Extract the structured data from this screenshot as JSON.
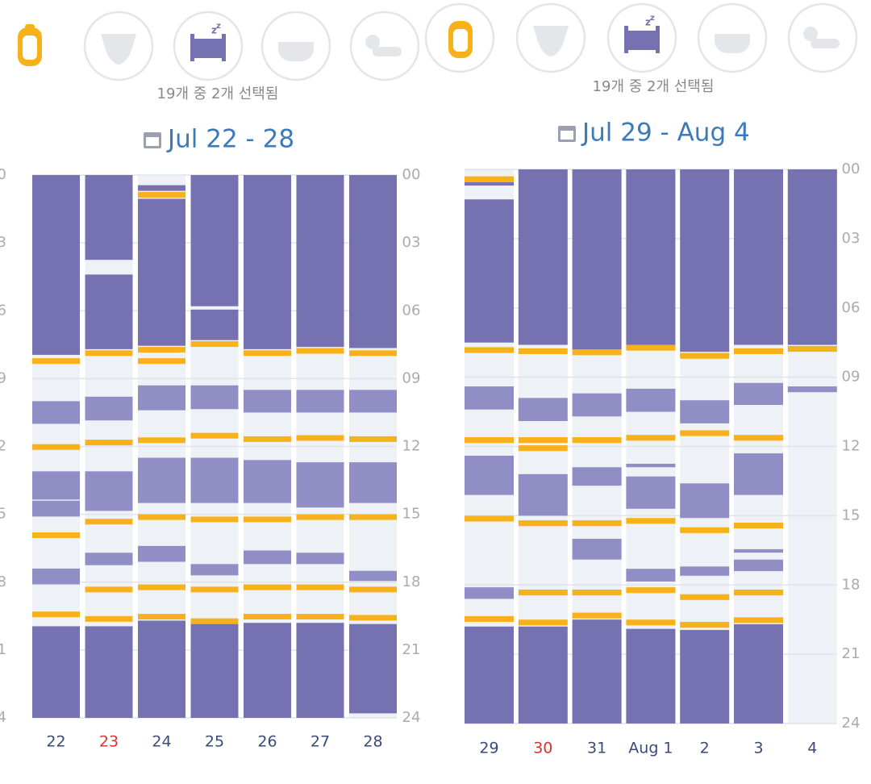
{
  "colors": {
    "background": "#eef1f6",
    "grid": "#dfe3ea",
    "sleep": "#7672b1",
    "nap": "#918ec6",
    "feed": "#f7b21b",
    "tick": "#aaaab0",
    "day": "#3a4a7a",
    "title": "#3d7ab8",
    "selection": "#888"
  },
  "panels": [
    {
      "selection": "19개 중 2개 선택됨",
      "title": "Jul 22 - 28",
      "ylim": [
        0,
        24
      ],
      "yticks": [
        {
          "value": 0,
          "label": "00"
        },
        {
          "value": 3,
          "label": "03"
        },
        {
          "value": 6,
          "label": "06"
        },
        {
          "value": 9,
          "label": "09"
        },
        12,
        15,
        18,
        21,
        24
      ],
      "days": [
        {
          "label": "22",
          "sleep": [
            [
              0,
              7.95
            ],
            [
              19.95,
              24
            ]
          ],
          "nap": [
            [
              10.0,
              11.0
            ],
            [
              13.1,
              14.35
            ],
            [
              14.4,
              15.1
            ],
            [
              17.4,
              18.1
            ]
          ],
          "feed": [
            [
              8.1,
              8.35
            ],
            [
              11.9,
              12.15
            ],
            [
              15.8,
              16.05
            ],
            [
              19.3,
              19.55
            ]
          ]
        },
        {
          "label": "23",
          "color": "#d9332c",
          "sleep": [
            [
              0,
              3.75
            ],
            [
              4.4,
              7.7
            ],
            [
              19.95,
              24
            ]
          ],
          "nap": [
            [
              9.8,
              10.85
            ],
            [
              13.1,
              14.85
            ],
            [
              16.7,
              17.25
            ]
          ],
          "feed": [
            [
              7.75,
              8.0
            ],
            [
              11.7,
              11.95
            ],
            [
              15.2,
              15.45
            ],
            [
              18.2,
              18.45
            ],
            [
              19.5,
              19.75
            ]
          ]
        },
        {
          "label": "24",
          "sleep": [
            [
              0.45,
              0.7
            ],
            [
              1.05,
              7.55
            ],
            [
              19.7,
              24
            ]
          ],
          "nap": [
            [
              9.3,
              10.4
            ],
            [
              12.5,
              14.5
            ],
            [
              16.4,
              17.1
            ]
          ],
          "feed": [
            [
              0.75,
              1.0
            ],
            [
              7.6,
              7.85
            ],
            [
              8.1,
              8.35
            ],
            [
              11.6,
              11.85
            ],
            [
              15.0,
              15.25
            ],
            [
              18.1,
              18.35
            ],
            [
              19.4,
              19.65
            ]
          ]
        },
        {
          "label": "25",
          "sleep": [
            [
              0,
              5.8
            ],
            [
              5.95,
              7.3
            ],
            [
              19.85,
              24
            ]
          ],
          "nap": [
            [
              9.3,
              10.35
            ],
            [
              12.5,
              14.5
            ],
            [
              17.2,
              17.7
            ]
          ],
          "feed": [
            [
              7.35,
              7.6
            ],
            [
              11.4,
              11.65
            ],
            [
              15.1,
              15.35
            ],
            [
              18.2,
              18.45
            ],
            [
              19.6,
              19.85
            ]
          ]
        },
        {
          "label": "26",
          "sleep": [
            [
              0,
              7.7
            ],
            [
              19.8,
              24
            ]
          ],
          "nap": [
            [
              9.5,
              10.5
            ],
            [
              12.6,
              14.5
            ],
            [
              16.6,
              17.2
            ]
          ],
          "feed": [
            [
              7.75,
              8.0
            ],
            [
              11.55,
              11.8
            ],
            [
              15.1,
              15.35
            ],
            [
              18.1,
              18.35
            ],
            [
              19.4,
              19.65
            ]
          ]
        },
        {
          "label": "27",
          "sleep": [
            [
              0,
              7.6
            ],
            [
              19.8,
              24
            ]
          ],
          "nap": [
            [
              9.5,
              10.5
            ],
            [
              12.7,
              14.7
            ],
            [
              16.7,
              17.2
            ]
          ],
          "feed": [
            [
              7.65,
              7.9
            ],
            [
              11.5,
              11.75
            ],
            [
              15.0,
              15.25
            ],
            [
              18.1,
              18.35
            ],
            [
              19.4,
              19.65
            ]
          ]
        },
        {
          "label": "28",
          "sleep": [
            [
              0,
              7.65
            ],
            [
              19.85,
              23.8
            ]
          ],
          "nap": [
            [
              9.5,
              10.5
            ],
            [
              12.7,
              14.5
            ],
            [
              17.5,
              17.95
            ]
          ],
          "feed": [
            [
              7.75,
              8.0
            ],
            [
              11.55,
              11.8
            ],
            [
              15.0,
              15.25
            ],
            [
              18.2,
              18.45
            ],
            [
              19.45,
              19.7
            ]
          ]
        }
      ]
    },
    {
      "selection": "19개 중 2개 선택됨",
      "title": "Jul 29 - Aug 4",
      "ylim": [
        0,
        24
      ],
      "yticks": [
        {
          "value": 0,
          "label": "00"
        },
        {
          "value": 3,
          "label": "03"
        },
        {
          "value": 6,
          "label": "06"
        },
        {
          "value": 9,
          "label": "09"
        },
        12,
        15,
        18,
        21,
        24
      ],
      "days": [
        {
          "label": "29",
          "sleep": [
            [
              0.55,
              0.7
            ],
            [
              1.3,
              7.5
            ],
            [
              19.8,
              24
            ]
          ],
          "nap": [
            [
              9.4,
              10.4
            ],
            [
              12.4,
              14.1
            ],
            [
              18.1,
              18.6
            ]
          ],
          "feed": [
            [
              0.3,
              0.55
            ],
            [
              7.7,
              7.95
            ],
            [
              11.6,
              11.85
            ],
            [
              15.0,
              15.25
            ],
            [
              19.35,
              19.6
            ]
          ]
        },
        {
          "label": "30",
          "color": "#d9332c",
          "sleep": [
            [
              0,
              7.6
            ],
            [
              19.8,
              24
            ]
          ],
          "nap": [
            [
              9.9,
              10.9
            ],
            [
              13.2,
              15.0
            ]
          ],
          "feed": [
            [
              7.75,
              8.0
            ],
            [
              11.6,
              11.85
            ],
            [
              11.95,
              12.2
            ],
            [
              15.2,
              15.45
            ],
            [
              18.2,
              18.45
            ],
            [
              19.5,
              19.75
            ]
          ]
        },
        {
          "label": "31",
          "sleep": [
            [
              0,
              7.8
            ],
            [
              19.5,
              24
            ]
          ],
          "nap": [
            [
              9.7,
              10.7
            ],
            [
              12.9,
              13.7
            ],
            [
              16.0,
              16.9
            ]
          ],
          "feed": [
            [
              7.8,
              8.05
            ],
            [
              11.6,
              11.85
            ],
            [
              15.2,
              15.45
            ],
            [
              18.2,
              18.45
            ],
            [
              19.2,
              19.45
            ]
          ]
        },
        {
          "label": "Aug 1",
          "sleep": [
            [
              0,
              7.6
            ],
            [
              19.9,
              24
            ]
          ],
          "nap": [
            [
              9.5,
              10.5
            ],
            [
              12.75,
              12.9
            ],
            [
              13.3,
              14.7
            ],
            [
              17.3,
              17.85
            ]
          ],
          "feed": [
            [
              7.6,
              7.85
            ],
            [
              11.5,
              11.75
            ],
            [
              15.1,
              15.35
            ],
            [
              18.1,
              18.35
            ],
            [
              19.5,
              19.75
            ]
          ]
        },
        {
          "label": "2",
          "sleep": [
            [
              0,
              7.9
            ],
            [
              19.95,
              24
            ]
          ],
          "nap": [
            [
              10.0,
              11.0
            ],
            [
              13.6,
              15.1
            ],
            [
              17.2,
              17.6
            ]
          ],
          "feed": [
            [
              7.95,
              8.2
            ],
            [
              11.3,
              11.55
            ],
            [
              15.5,
              15.75
            ],
            [
              18.4,
              18.65
            ],
            [
              19.6,
              19.85
            ]
          ]
        },
        {
          "label": "3",
          "sleep": [
            [
              0,
              7.6
            ],
            [
              19.7,
              24
            ]
          ],
          "nap": [
            [
              9.25,
              10.2
            ],
            [
              12.3,
              14.1
            ],
            [
              16.45,
              16.6
            ],
            [
              16.9,
              17.4
            ]
          ],
          "feed": [
            [
              7.75,
              8.0
            ],
            [
              11.5,
              11.75
            ],
            [
              15.3,
              15.55
            ],
            [
              18.2,
              18.45
            ],
            [
              19.4,
              19.65
            ]
          ]
        },
        {
          "label": "4",
          "sleep": [
            [
              0,
              7.6
            ]
          ],
          "nap": [
            [
              9.4,
              9.65
            ]
          ],
          "feed": [
            [
              7.65,
              7.9
            ]
          ]
        }
      ]
    }
  ]
}
